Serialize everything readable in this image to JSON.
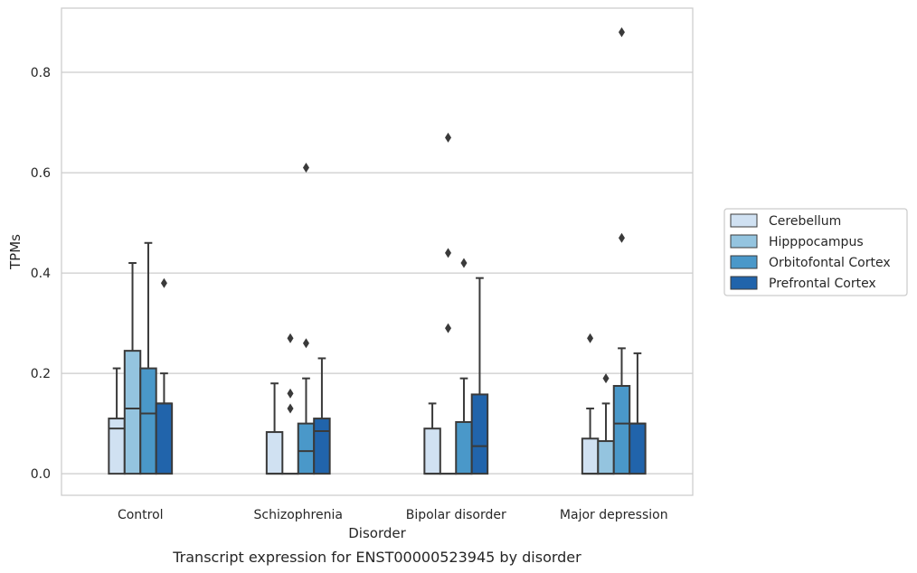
{
  "caption": "Transcript expression for ENST00000523945 by disorder",
  "chart_data": {
    "type": "boxplot",
    "xlabel": "Disorder",
    "ylabel": "TPMs",
    "ylim": [
      -0.043,
      0.928
    ],
    "yticks": [
      0.0,
      0.2,
      0.4,
      0.6,
      0.8
    ],
    "ytick_labels": [
      "0.0",
      "0.2",
      "0.4",
      "0.6",
      "0.8"
    ],
    "grid": "horizontal",
    "legend_placement": "center-right",
    "categories": [
      "Control",
      "Schizophrenia",
      "Bipolar disorder",
      "Major depression"
    ],
    "series": [
      {
        "name": "Cerebellum",
        "color": "#d0e1f2",
        "boxes": [
          {
            "whisker_low": 0.0,
            "q1": 0.0,
            "median": 0.09,
            "q3": 0.11,
            "whisker_high": 0.21,
            "outliers": []
          },
          {
            "whisker_low": 0.0,
            "q1": 0.0,
            "median": 0.0,
            "q3": 0.083,
            "whisker_high": 0.18,
            "outliers": []
          },
          {
            "whisker_low": 0.0,
            "q1": 0.0,
            "median": 0.0,
            "q3": 0.09,
            "whisker_high": 0.14,
            "outliers": []
          },
          {
            "whisker_low": 0.0,
            "q1": 0.0,
            "median": 0.0,
            "q3": 0.07,
            "whisker_high": 0.13,
            "outliers": [
              0.27
            ]
          }
        ]
      },
      {
        "name": "Hipppocampus",
        "color": "#94c4df",
        "boxes": [
          {
            "whisker_low": 0.0,
            "q1": 0.0,
            "median": 0.13,
            "q3": 0.245,
            "whisker_high": 0.42,
            "outliers": []
          },
          {
            "whisker_low": 0.0,
            "q1": 0.0,
            "median": 0.0,
            "q3": 0.0,
            "whisker_high": 0.0,
            "outliers": [
              0.13,
              0.16,
              0.27
            ]
          },
          {
            "whisker_low": 0.0,
            "q1": 0.0,
            "median": 0.0,
            "q3": 0.0,
            "whisker_high": 0.0,
            "outliers": [
              0.29,
              0.44,
              0.67
            ]
          },
          {
            "whisker_low": 0.0,
            "q1": 0.0,
            "median": 0.0,
            "q3": 0.065,
            "whisker_high": 0.14,
            "outliers": [
              0.19
            ]
          }
        ]
      },
      {
        "name": "Orbitofontal Cortex",
        "color": "#4a98c9",
        "boxes": [
          {
            "whisker_low": 0.0,
            "q1": 0.0,
            "median": 0.12,
            "q3": 0.21,
            "whisker_high": 0.46,
            "outliers": []
          },
          {
            "whisker_low": 0.0,
            "q1": 0.0,
            "median": 0.045,
            "q3": 0.1,
            "whisker_high": 0.19,
            "outliers": [
              0.26,
              0.61
            ]
          },
          {
            "whisker_low": 0.0,
            "q1": 0.0,
            "median": 0.0,
            "q3": 0.103,
            "whisker_high": 0.19,
            "outliers": [
              0.42
            ]
          },
          {
            "whisker_low": 0.0,
            "q1": 0.0,
            "median": 0.1,
            "q3": 0.175,
            "whisker_high": 0.25,
            "outliers": [
              0.47,
              0.88
            ]
          }
        ]
      },
      {
        "name": "Prefrontal Cortex",
        "color": "#2164ab",
        "boxes": [
          {
            "whisker_low": 0.0,
            "q1": 0.0,
            "median": 0.14,
            "q3": 0.14,
            "whisker_high": 0.2,
            "outliers": [
              0.38
            ]
          },
          {
            "whisker_low": 0.0,
            "q1": 0.0,
            "median": 0.085,
            "q3": 0.11,
            "whisker_high": 0.23,
            "outliers": []
          },
          {
            "whisker_low": 0.0,
            "q1": 0.0,
            "median": 0.055,
            "q3": 0.158,
            "whisker_high": 0.39,
            "outliers": []
          },
          {
            "whisker_low": 0.0,
            "q1": 0.0,
            "median": 0.1,
            "q3": 0.1,
            "whisker_high": 0.24,
            "outliers": []
          }
        ]
      }
    ]
  }
}
